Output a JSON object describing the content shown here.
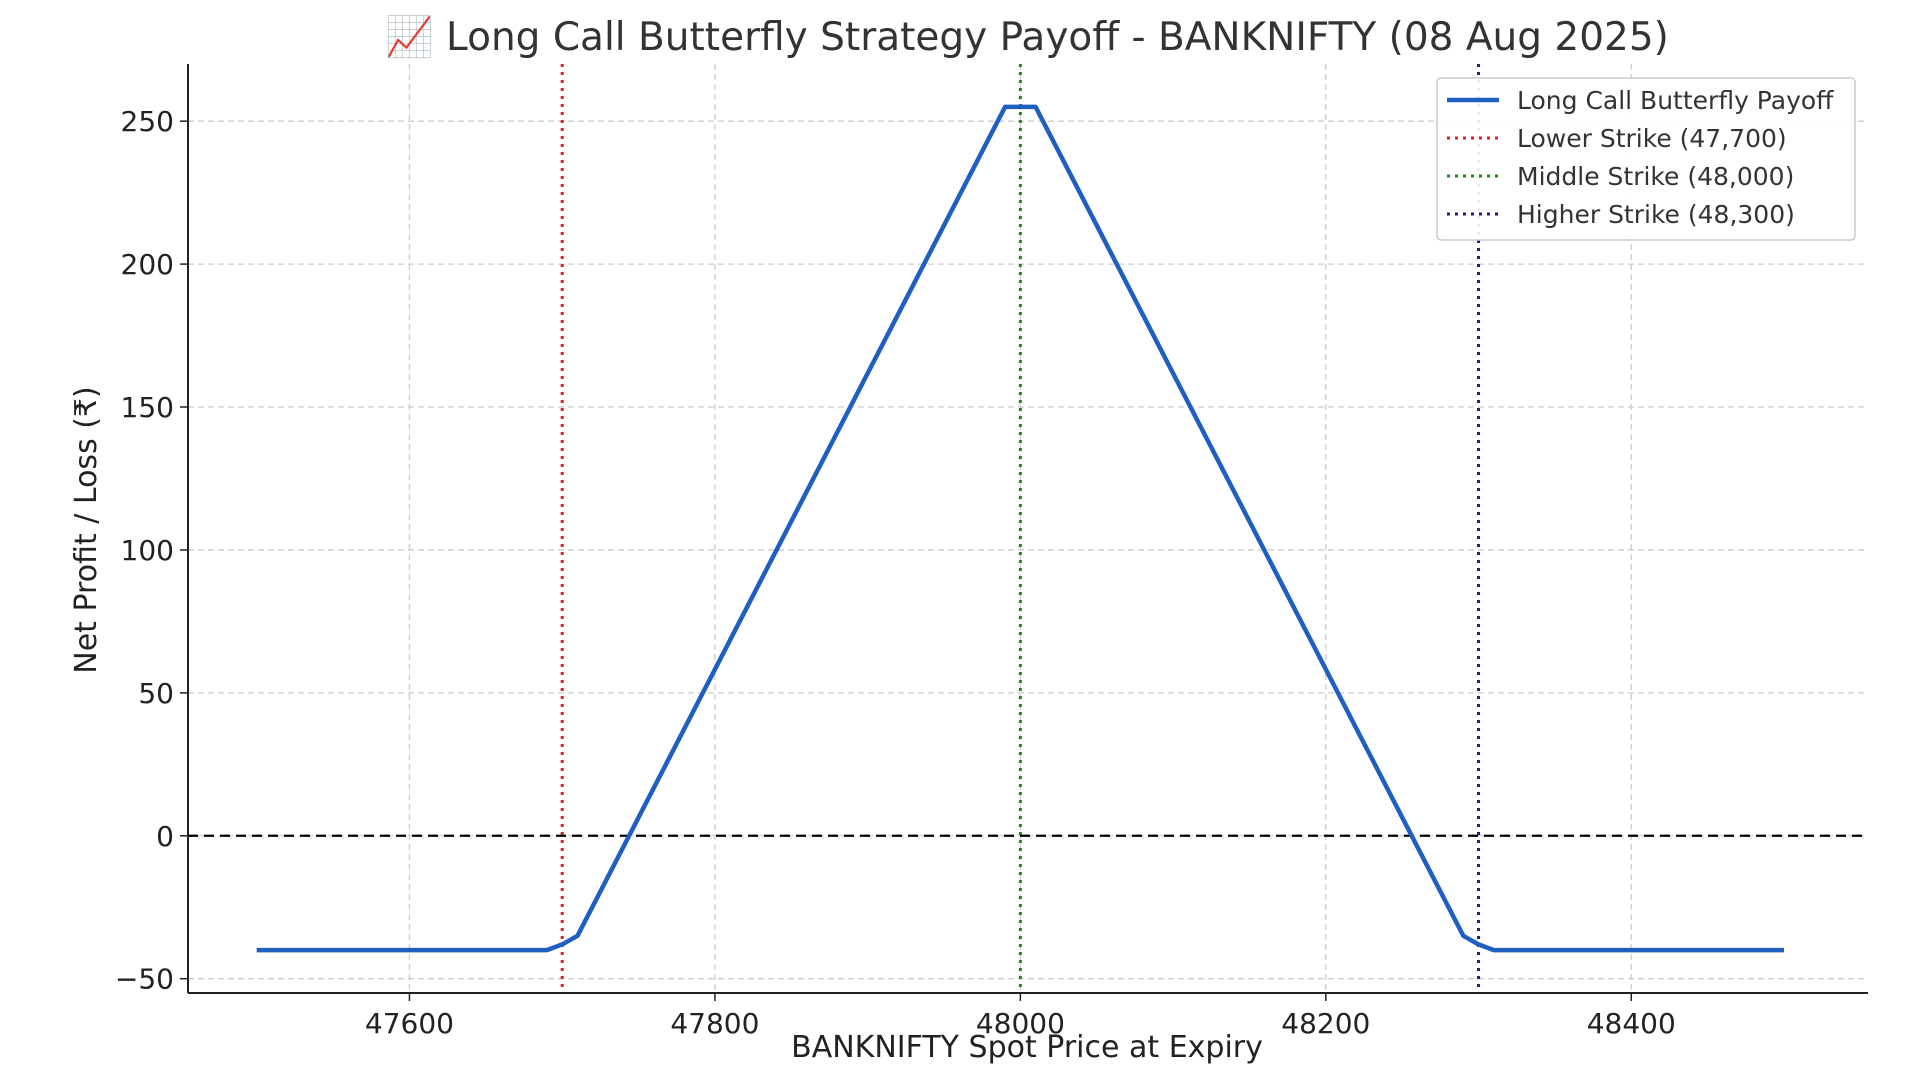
{
  "chart_data": {
    "type": "line",
    "title": "📈 Long Call Butterfly Strategy Payoff - BANKNIFTY (08 Aug 2025)",
    "xlabel": "BANKNIFTY Spot Price at Expiry",
    "ylabel": "Net Profit / Loss (₹)",
    "xlim": [
      47455,
      48555
    ],
    "ylim": [
      -55,
      270
    ],
    "x_ticks": [
      47600,
      47800,
      48000,
      48200,
      48400
    ],
    "y_ticks": [
      -50,
      0,
      50,
      100,
      150,
      200,
      250
    ],
    "grid": true,
    "legend_position": "top-right",
    "series": [
      {
        "name": "Long Call Butterfly Payoff",
        "style": "solid",
        "color": "#1f5fc1",
        "x": [
          47500,
          47690,
          47700,
          47710,
          47990,
          48000,
          48010,
          48290,
          48300,
          48310,
          48500
        ],
        "y": [
          -40,
          -40,
          -38,
          -35,
          255,
          255,
          255,
          -35,
          -38,
          -40,
          -40
        ]
      }
    ],
    "reference_lines": [
      {
        "name": "Lower Strike (47,700)",
        "orientation": "vertical",
        "value": 47700,
        "style": "dotted",
        "color": "#e02020"
      },
      {
        "name": "Middle Strike (48,000)",
        "orientation": "vertical",
        "value": 48000,
        "style": "dotted",
        "color": "#1a8a1a"
      },
      {
        "name": "Higher Strike (48,300)",
        "orientation": "vertical",
        "value": 48300,
        "style": "dotted",
        "color": "#1a1a9e"
      },
      {
        "name": "",
        "orientation": "horizontal",
        "value": 0,
        "style": "dashed",
        "color": "#000000"
      }
    ]
  }
}
